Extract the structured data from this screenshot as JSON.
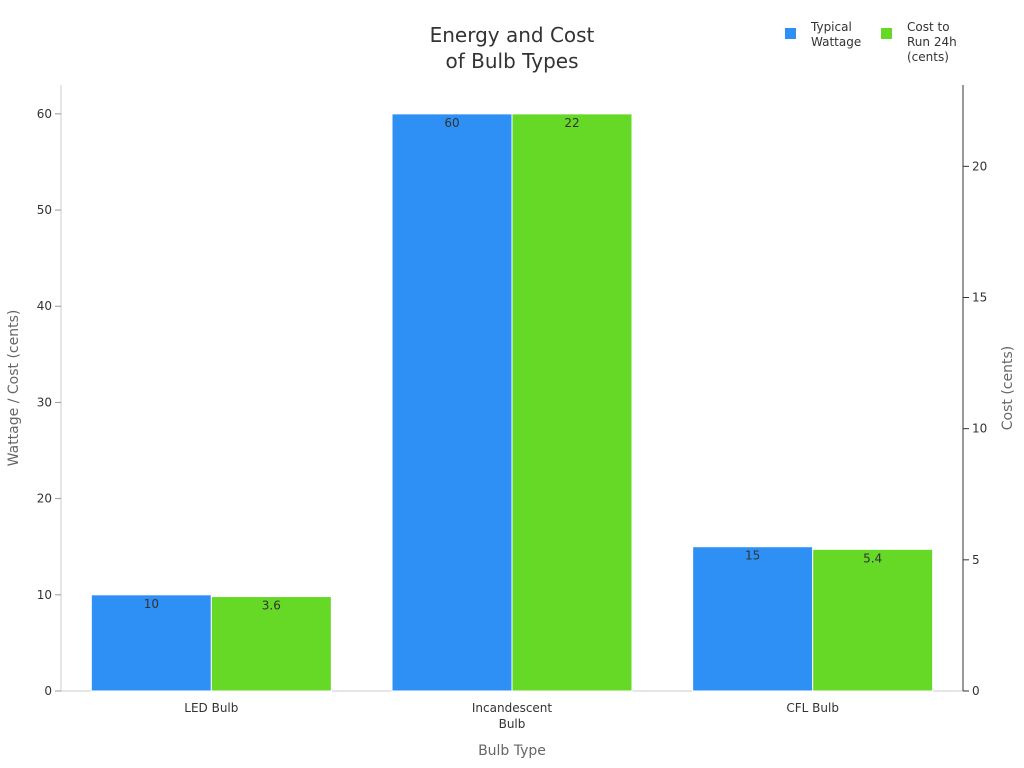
{
  "chart_data": {
    "type": "bar",
    "title_lines": [
      "Energy and Cost",
      "of Bulb Types"
    ],
    "categories": [
      [
        "LED Bulb"
      ],
      [
        "Incandescent",
        "Bulb"
      ],
      [
        "CFL Bulb"
      ]
    ],
    "xlabel": "Bulb Type",
    "ylabel": "Wattage / Cost (cents)",
    "y2label": "Cost (cents)",
    "ylim": [
      0,
      63
    ],
    "y2lim": [
      0,
      23.1
    ],
    "yticks": [
      0,
      10,
      20,
      30,
      40,
      50,
      60
    ],
    "y2ticks": [
      0,
      5,
      10,
      15,
      20
    ],
    "series": [
      {
        "name_lines": [
          "Typical",
          "Wattage"
        ],
        "values": [
          10,
          60,
          15
        ],
        "value_labels": [
          "10",
          "60",
          "15"
        ],
        "axis": "left",
        "color": "#2e90f5"
      },
      {
        "name_lines": [
          "Cost to",
          "Run 24h",
          "(cents)"
        ],
        "values": [
          3.6,
          22,
          5.4
        ],
        "value_labels": [
          "3.6",
          "22",
          "5.4"
        ],
        "axis": "right",
        "color": "#66d926"
      }
    ],
    "legend_position": "top-right",
    "grid": false
  }
}
